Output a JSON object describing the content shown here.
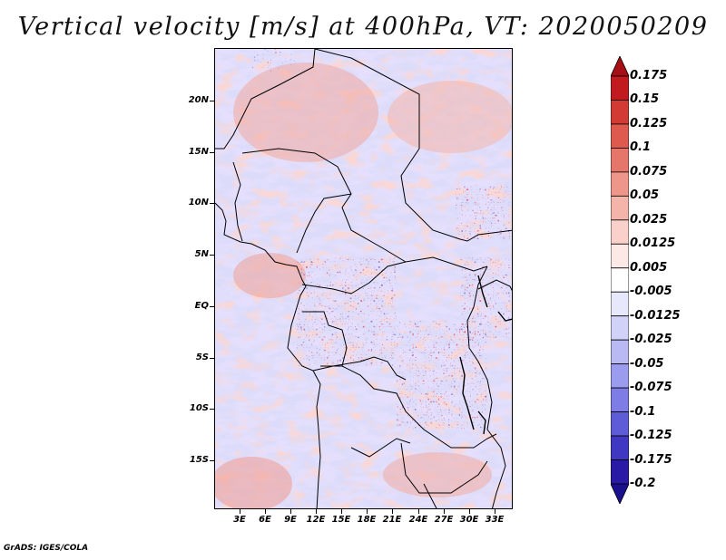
{
  "title": "Vertical velocity [m/s] at 400hPa, VT: 2020050209",
  "footer": "GrADS: IGES/COLA",
  "colors": {
    "positive_strong": "#a50f15",
    "positive_light": "#fcdcd6",
    "neutral": "#ffffff",
    "negative_light": "#d7d8fb",
    "negative_strong": "#1a0f8c",
    "border": "#000000",
    "coastline": "#000000"
  },
  "map": {
    "lat_range": [
      -20,
      24
    ],
    "lon_range": [
      0,
      35
    ],
    "lat_ticks": [
      "20N",
      "15N",
      "10N",
      "5N",
      "EQ",
      "5S",
      "10S",
      "15S"
    ],
    "lon_ticks": [
      "3E",
      "6E",
      "9E",
      "12E",
      "15E",
      "18E",
      "21E",
      "24E",
      "27E",
      "30E",
      "33E"
    ]
  },
  "colorbar": {
    "levels": [
      "0.175",
      "0.15",
      "0.125",
      "0.1",
      "0.075",
      "0.05",
      "0.025",
      "0.0125",
      "0.005",
      "-0.005",
      "-0.0125",
      "-0.025",
      "-0.05",
      "-0.075",
      "-0.1",
      "-0.125",
      "-0.175",
      "-0.2"
    ],
    "colors": [
      "#a50f15",
      "#c11b20",
      "#d23a34",
      "#de5a4e",
      "#e6766a",
      "#ee968a",
      "#f4b4aa",
      "#f9d1ca",
      "#fce8e4",
      "#ffffff",
      "#e8e8fc",
      "#d2d2f8",
      "#b9baf4",
      "#9c9cee",
      "#7e7de6",
      "#5f5cd8",
      "#4037c2",
      "#2a1aa6",
      "#1a0f8c"
    ]
  }
}
